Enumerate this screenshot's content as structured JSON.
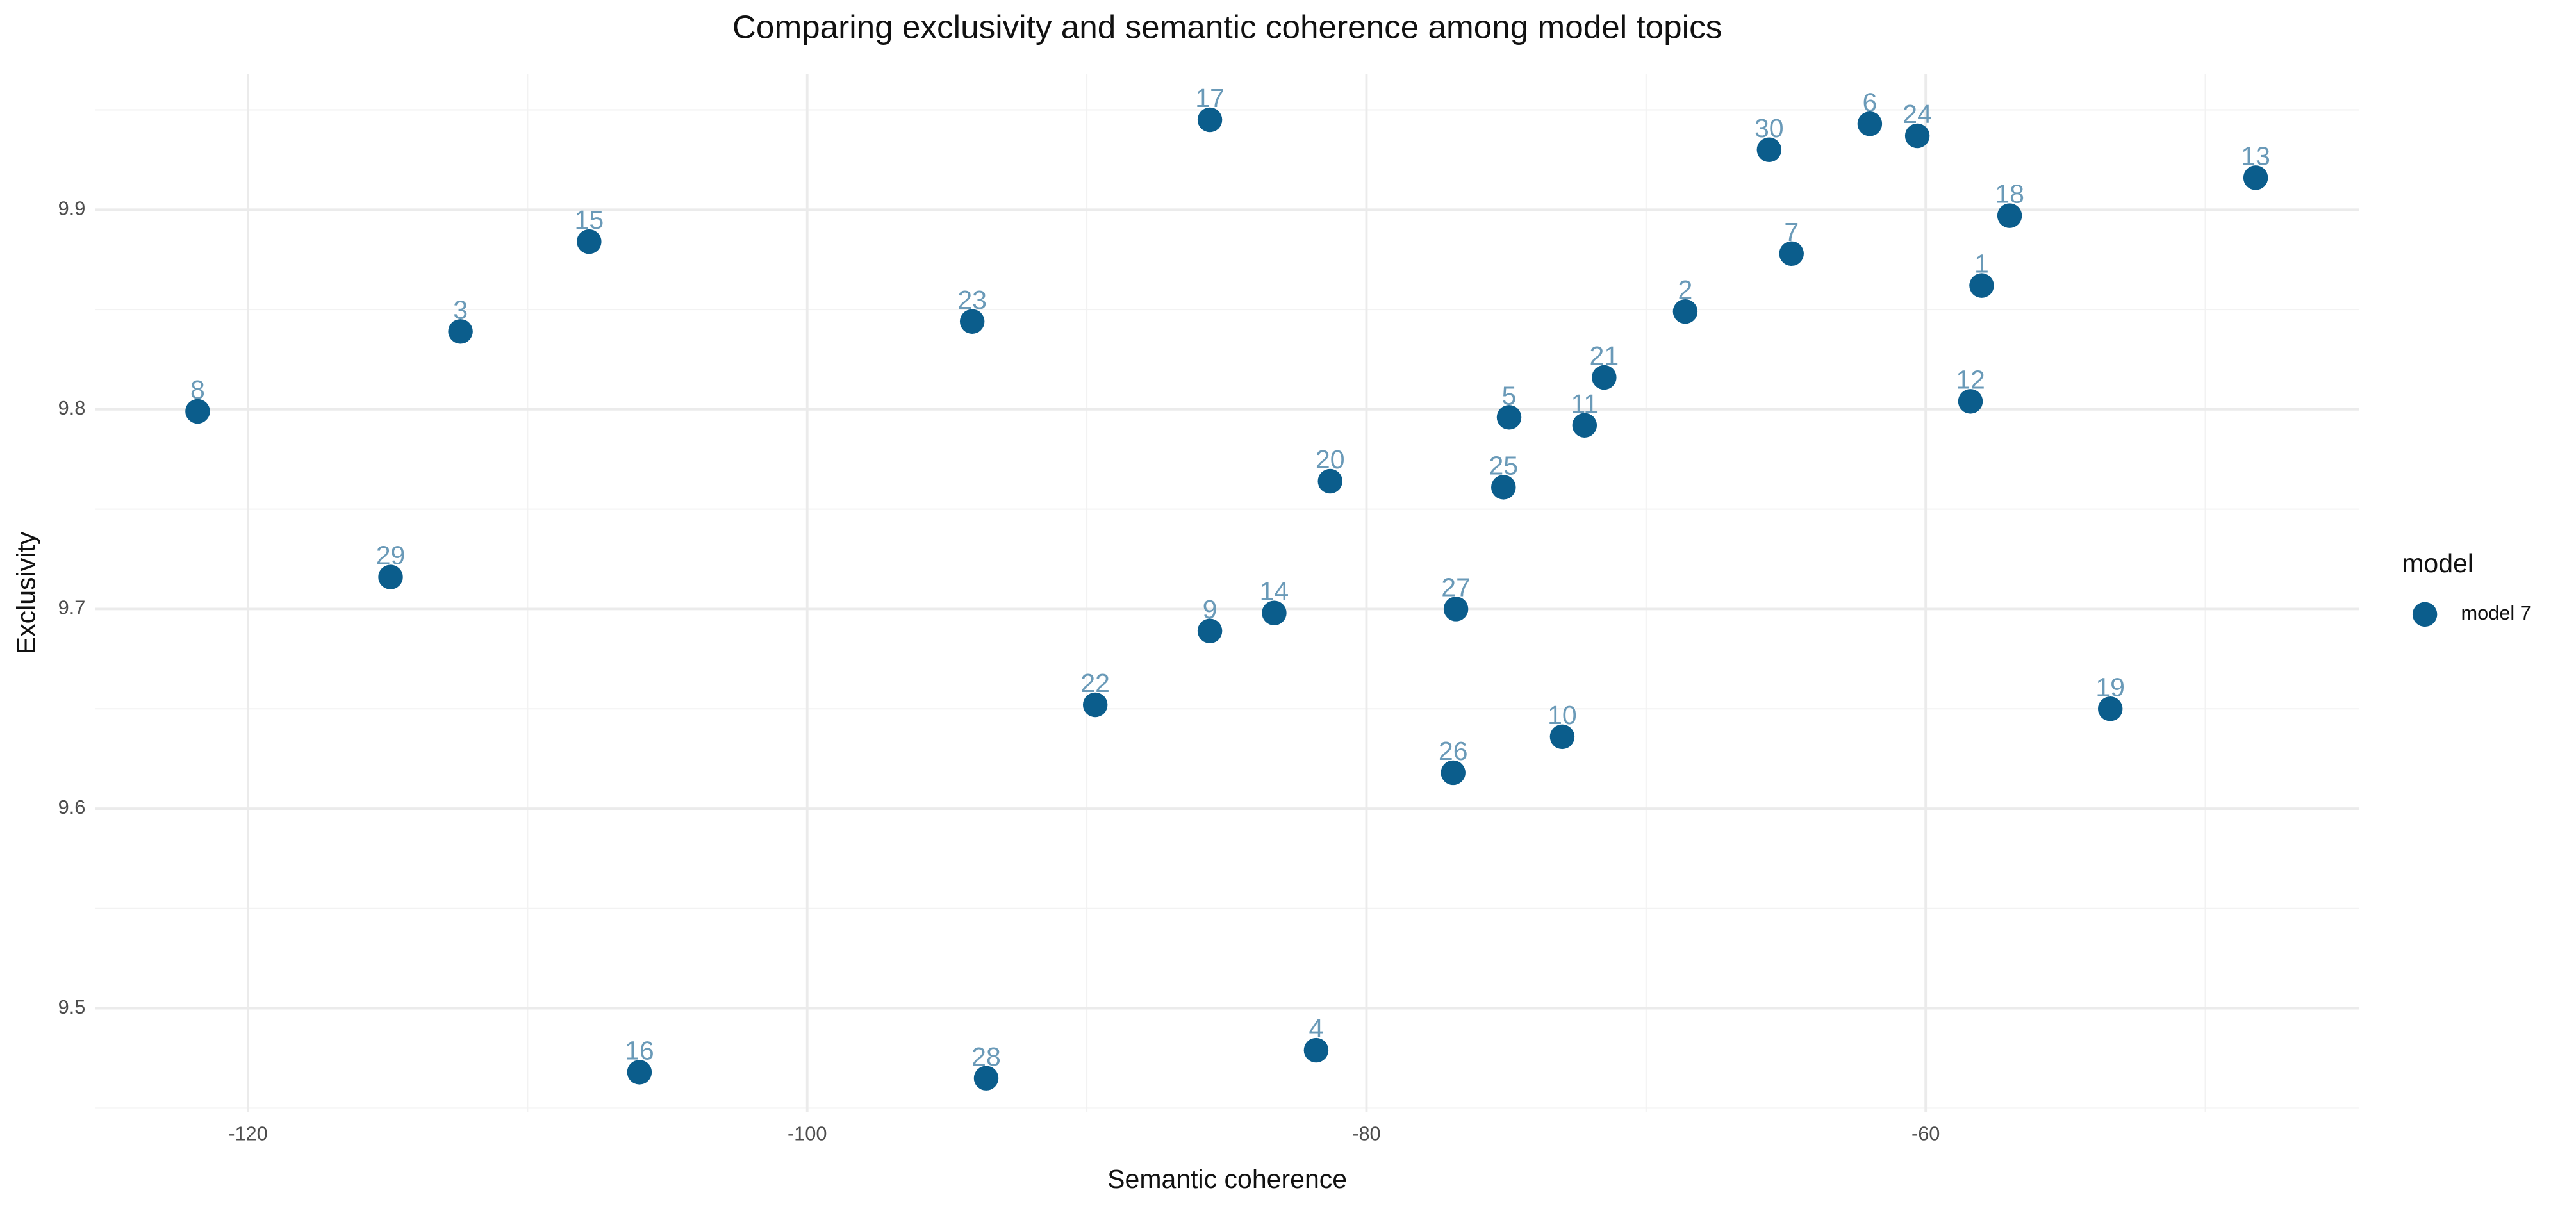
{
  "chart_data": {
    "type": "scatter",
    "title": "Comparing exclusivity and semantic coherence among model topics",
    "x_label": "Semantic coherence",
    "y_label": "Exclusivity",
    "legend_title": "model",
    "legend_position": "right",
    "grid": true,
    "label_color": "#6a9ab8",
    "series": [
      {
        "name": "model 7",
        "color": "#0b5d8c",
        "labels": [
          "8",
          "29",
          "3",
          "15",
          "16",
          "23",
          "28",
          "22",
          "17",
          "9",
          "14",
          "4",
          "20",
          "26",
          "27",
          "25",
          "5",
          "10",
          "11",
          "21",
          "2",
          "30",
          "7",
          "6",
          "24",
          "1",
          "12",
          "18",
          "19",
          "13"
        ],
        "x": [
          -121.8,
          -114.9,
          -112.4,
          -107.8,
          -106.0,
          -94.1,
          -93.6,
          -89.7,
          -85.6,
          -85.6,
          -83.3,
          -81.8,
          -81.3,
          -76.9,
          -76.8,
          -75.1,
          -74.9,
          -73.0,
          -72.2,
          -71.5,
          -68.6,
          -65.6,
          -64.8,
          -62.0,
          -60.3,
          -58.0,
          -58.4,
          -57.0,
          -53.4,
          -48.2
        ],
        "values": [
          9.799,
          9.716,
          9.839,
          9.884,
          9.468,
          9.844,
          9.465,
          9.652,
          9.945,
          9.689,
          9.698,
          9.479,
          9.764,
          9.618,
          9.7,
          9.761,
          9.796,
          9.636,
          9.792,
          9.816,
          9.849,
          9.93,
          9.878,
          9.943,
          9.937,
          9.862,
          9.804,
          9.897,
          9.65,
          9.916
        ]
      }
    ],
    "xlim": [
      -125.46,
      -44.5
    ],
    "ylim": [
      9.448,
      9.968
    ],
    "xticks": [
      -120,
      -100,
      -80,
      -60
    ],
    "yticks": [
      9.5,
      9.6,
      9.7,
      9.8,
      9.9
    ]
  }
}
